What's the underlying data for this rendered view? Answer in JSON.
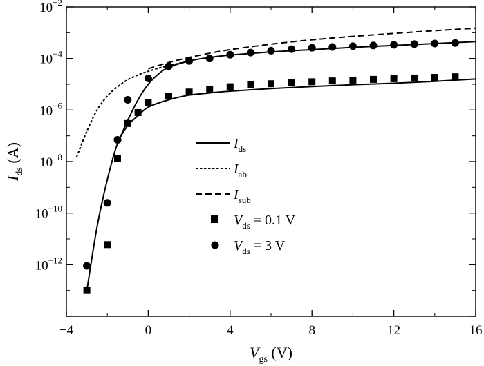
{
  "chart_data": {
    "type": "line",
    "title": "",
    "xlabel": {
      "main": "V",
      "sub": "gs",
      "unit": " (V)"
    },
    "ylabel": {
      "main": "I",
      "sub": "ds",
      "unit": " (A)"
    },
    "xlim": [
      -4,
      16
    ],
    "ylim": [
      1e-14,
      0.01
    ],
    "yscale": "log",
    "grid": false,
    "legend_position": "center-right",
    "xticks": [
      {
        "value": -4,
        "label": "−4"
      },
      {
        "value": 0,
        "label": "0"
      },
      {
        "value": 4,
        "label": "4"
      },
      {
        "value": 8,
        "label": "8"
      },
      {
        "value": 12,
        "label": "12"
      },
      {
        "value": 16,
        "label": "16"
      }
    ],
    "yticks": [
      {
        "value": 1e-12,
        "base": "10",
        "exp": "−12"
      },
      {
        "value": 1e-10,
        "base": "10",
        "exp": "−10"
      },
      {
        "value": 1e-08,
        "base": "10",
        "exp": "−8"
      },
      {
        "value": 1e-06,
        "base": "10",
        "exp": "−6"
      },
      {
        "value": 0.0001,
        "base": "10",
        "exp": "−4"
      },
      {
        "value": 0.01,
        "base": "10",
        "exp": "−2"
      }
    ],
    "series": [
      {
        "name": "I_ds",
        "legend": {
          "main": "I",
          "sub": "ds",
          "rest": ""
        },
        "style": "solid",
        "x": [
          -3,
          -2.5,
          -2,
          -1.5,
          -1,
          -0.5,
          0,
          1,
          2,
          3,
          4,
          6,
          8,
          10,
          12,
          14,
          16
        ],
        "y": [
          1e-13,
          3e-11,
          2e-09,
          5e-08,
          2.5e-07,
          6e-07,
          1.3e-06,
          2.5e-06,
          3.8e-06,
          4.6e-06,
          5.4e-06,
          6.8e-06,
          8.2e-06,
          9.6e-06,
          1.1e-05,
          1.3e-05,
          1.6e-05
        ]
      },
      {
        "name": "I_ds",
        "legend": null,
        "style": "solid",
        "x": [
          -1.5,
          -1,
          -0.5,
          0,
          0.5,
          1,
          2,
          3,
          4,
          6,
          8,
          10,
          12,
          14,
          16
        ],
        "y": [
          5e-08,
          4e-07,
          2.5e-06,
          1e-05,
          2.5e-05,
          4.5e-05,
          8e-05,
          0.00011,
          0.000135,
          0.00018,
          0.00022,
          0.00027,
          0.00032,
          0.00038,
          0.00045
        ]
      },
      {
        "name": "I_ab",
        "legend": {
          "main": "I",
          "sub": "ab",
          "rest": ""
        },
        "style": "dotted",
        "x": [
          -3.5,
          -3,
          -2.5,
          -2,
          -1.5,
          -1,
          -0.5,
          0,
          0.5,
          1,
          1.5,
          2
        ],
        "y": [
          1.5e-08,
          1.5e-07,
          1e-06,
          3.5e-06,
          8e-06,
          1.5e-05,
          2.3e-05,
          3.2e-05,
          4.2e-05,
          5.2e-05,
          6.5e-05,
          8e-05
        ]
      },
      {
        "name": "I_sub",
        "legend": {
          "main": "I",
          "sub": "sub",
          "rest": ""
        },
        "style": "dashed",
        "x": [
          0,
          1,
          2,
          3,
          4,
          6,
          8,
          10,
          12,
          14,
          16
        ],
        "y": [
          4e-05,
          7e-05,
          0.00011,
          0.00016,
          0.00022,
          0.00036,
          0.00053,
          0.00072,
          0.00094,
          0.0012,
          0.0015
        ]
      },
      {
        "name": "V_ds = 0.1 V",
        "legend": {
          "main": "V",
          "sub": "ds",
          "rest": " = 0.1 V"
        },
        "style": "square",
        "x": [
          -3,
          -2,
          -1.5,
          -1,
          -0.5,
          0,
          1,
          2,
          3,
          4,
          5,
          6,
          7,
          8,
          9,
          10,
          11,
          12,
          13,
          14,
          15
        ],
        "y": [
          1e-13,
          6e-12,
          1.3e-08,
          3e-07,
          8e-07,
          2e-06,
          3.5e-06,
          5e-06,
          6.5e-06,
          8e-06,
          9.5e-06,
          1.05e-05,
          1.15e-05,
          1.25e-05,
          1.35e-05,
          1.45e-05,
          1.55e-05,
          1.65e-05,
          1.75e-05,
          1.85e-05,
          1.95e-05
        ]
      },
      {
        "name": "V_ds = 3 V",
        "legend": {
          "main": "V",
          "sub": "ds",
          "rest": " = 3 V"
        },
        "style": "circle",
        "x": [
          -3,
          -2,
          -1.5,
          -1,
          0,
          1,
          2,
          3,
          4,
          5,
          6,
          7,
          8,
          9,
          10,
          11,
          12,
          13,
          14,
          15
        ],
        "y": [
          9e-13,
          2.5e-10,
          7e-08,
          2.5e-06,
          1.7e-05,
          5e-05,
          8e-05,
          0.0001,
          0.00014,
          0.00017,
          0.0002,
          0.00023,
          0.00026,
          0.00028,
          0.0003,
          0.00032,
          0.00034,
          0.00036,
          0.00038,
          0.0004
        ]
      }
    ]
  }
}
